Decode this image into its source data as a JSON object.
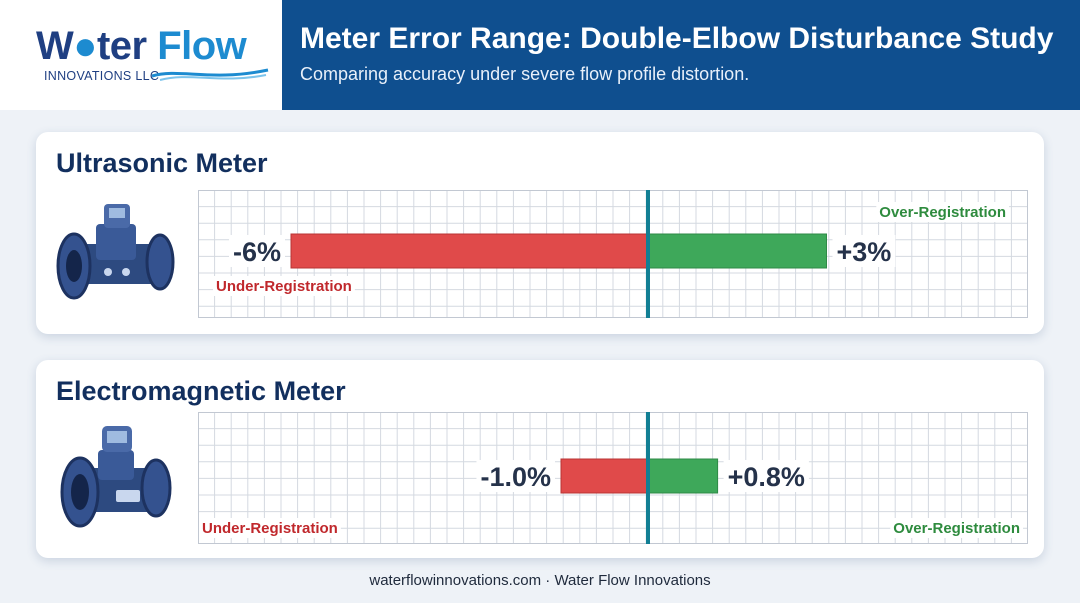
{
  "brand": {
    "word1": "W",
    "word2": "ter",
    "word3": "Flow",
    "tagline": "INNOVATIONS LLC"
  },
  "header": {
    "title": "Meter Error Range: Double-Elbow Disturbance Study",
    "subtitle": "Comparing accuracy under severe flow profile distortion."
  },
  "footer": {
    "text": "waterflowinnovations.com · Water Flow Innovations"
  },
  "colors": {
    "negative": "#e04a4a",
    "positive": "#3ea85a",
    "zero_line": "#127f94",
    "under_text": "#c0282c",
    "over_text": "#2e8b3e"
  },
  "chart_data": [
    {
      "type": "bar",
      "title": "Ultrasonic Meter",
      "orientation": "horizontal",
      "xlim": [
        -8,
        4
      ],
      "grid": true,
      "series": [
        {
          "name": "Under-Registration",
          "value": -6,
          "label": "-6%"
        },
        {
          "name": "Over-Registration",
          "value": 3,
          "label": "+3%"
        }
      ]
    },
    {
      "type": "bar",
      "title": "Electromagnetic Meter",
      "orientation": "horizontal",
      "xlim": [
        -6,
        5
      ],
      "grid": true,
      "series": [
        {
          "name": "Under-Registration",
          "value": -1.0,
          "label": "-1.0%"
        },
        {
          "name": "Over-Registration",
          "value": 0.8,
          "label": "+0.8%"
        }
      ]
    }
  ]
}
